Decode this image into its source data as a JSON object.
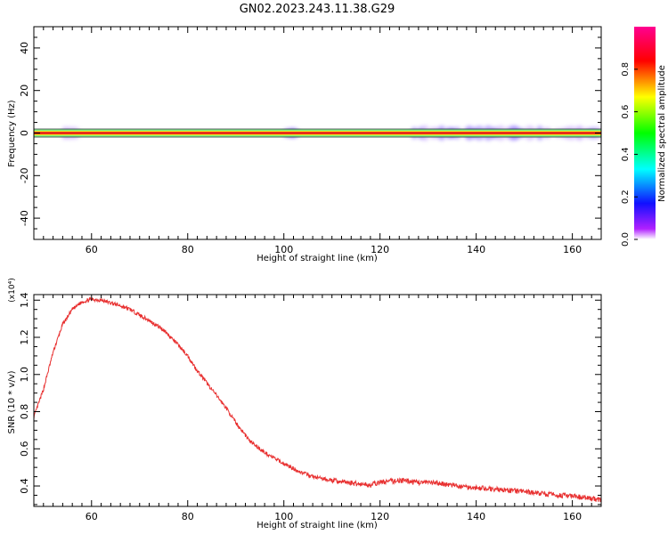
{
  "title": "GN02.2023.243.11.38.G29",
  "colorbar": {
    "label": "Normalized spectral amplitude",
    "ticks": [
      "0.0",
      "0.2",
      "0.4",
      "0.6",
      "0.8"
    ]
  },
  "chart_data": [
    {
      "type": "heatmap",
      "xlabel": "Height of straight line (km)",
      "ylabel": "Frequency (Hz)",
      "xlim": [
        48,
        166
      ],
      "ylim": [
        -50,
        50
      ],
      "x_ticks": [
        "60",
        "80",
        "100",
        "120",
        "140",
        "160"
      ],
      "y_ticks": [
        "40",
        "20",
        "0",
        "-20",
        "-40"
      ],
      "colorscale_range": [
        0,
        1
      ],
      "band_center_frequency": 0,
      "spread_regions": [
        {
          "x_range": [
            54,
            57
          ],
          "note": "faint spread"
        },
        {
          "x_range": [
            100,
            103
          ],
          "note": "spread"
        },
        {
          "x_range": [
            127,
            166
          ],
          "note": "broadened spread"
        }
      ]
    },
    {
      "type": "line",
      "xlabel": "Height of straight line (km)",
      "ylabel": "SNR (10 * v/v)",
      "y_multiplier": "(x10⁴)",
      "xlim": [
        48,
        166
      ],
      "ylim": [
        0.29,
        1.43
      ],
      "x_ticks": [
        "60",
        "80",
        "100",
        "120",
        "140",
        "160"
      ],
      "y_ticks": [
        "0.4",
        "0.6",
        "0.8",
        "1.0",
        "1.2",
        "1.4"
      ],
      "color": "#e83030",
      "x": [
        48,
        50,
        52,
        54,
        56,
        58,
        60,
        62,
        64,
        66,
        68,
        70,
        72,
        75,
        78,
        80,
        82,
        85,
        88,
        90,
        93,
        96,
        100,
        103,
        106,
        110,
        113,
        116,
        118,
        120,
        124,
        128,
        132,
        136,
        140,
        145,
        150,
        155,
        160,
        166
      ],
      "y": [
        0.77,
        0.92,
        1.12,
        1.27,
        1.35,
        1.39,
        1.405,
        1.4,
        1.385,
        1.37,
        1.35,
        1.32,
        1.29,
        1.24,
        1.16,
        1.1,
        1.02,
        0.92,
        0.82,
        0.74,
        0.64,
        0.58,
        0.52,
        0.48,
        0.45,
        0.43,
        0.42,
        0.41,
        0.405,
        0.42,
        0.43,
        0.42,
        0.415,
        0.4,
        0.39,
        0.38,
        0.37,
        0.355,
        0.345,
        0.325
      ]
    }
  ]
}
